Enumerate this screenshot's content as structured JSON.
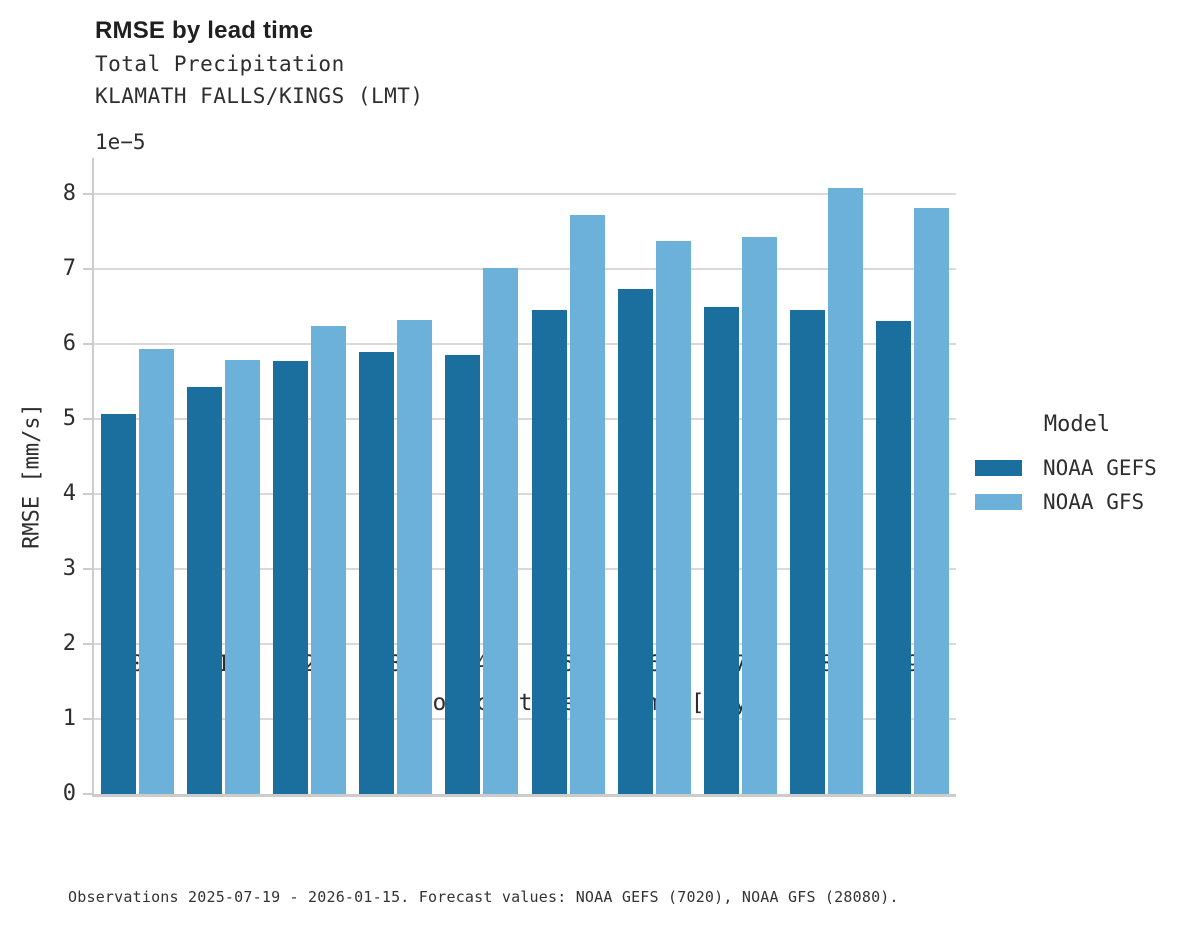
{
  "header": {
    "title": "RMSE by lead time",
    "subtitle_line1": "Total Precipitation",
    "subtitle_line2": "KLAMATH FALLS/KINGS (LMT)"
  },
  "axes": {
    "y_offset_label": "1e−5",
    "y_label": "RMSE [mm/s]",
    "x_label": "Forecast lead time [days]"
  },
  "legend": {
    "title": "Model",
    "entries": [
      {
        "label": "NOAA GEFS",
        "color": "#1b6f9f"
      },
      {
        "label": "NOAA GFS",
        "color": "#6cb1d9"
      }
    ]
  },
  "caption": "Observations 2025-07-19 - 2026-01-15. Forecast values: NOAA GEFS (7020), NOAA GFS (28080).",
  "colors": {
    "gefs_bar": "#1b6f9f",
    "gfs_bar": "#6cb1d9",
    "gridline": "#d9d9d9",
    "spine": "#cccccc",
    "text": "#2e2e2e"
  },
  "chart_data": {
    "type": "bar",
    "title": "RMSE by lead time",
    "subtitle": [
      "Total Precipitation",
      "KLAMATH FALLS/KINGS (LMT)"
    ],
    "xlabel": "Forecast lead time [days]",
    "ylabel": "RMSE [mm/s]",
    "value_scale": "1e-5",
    "categories": [
      0,
      1,
      2,
      3,
      4,
      5,
      6,
      7,
      8,
      9
    ],
    "series": [
      {
        "name": "NOAA GEFS",
        "color": "#1b6f9f",
        "values_x1e5": [
          5.07,
          5.43,
          5.77,
          5.89,
          5.86,
          6.46,
          6.73,
          6.5,
          6.46,
          6.31
        ]
      },
      {
        "name": "NOAA GFS",
        "color": "#6cb1d9",
        "values_x1e5": [
          5.94,
          5.79,
          6.24,
          6.32,
          7.02,
          7.72,
          7.38,
          7.43,
          8.08,
          7.81
        ]
      }
    ],
    "ylim_x1e5": [
      0,
      8.5
    ],
    "yticks_x1e5": [
      0,
      1,
      2,
      3,
      4,
      5,
      6,
      7,
      8
    ],
    "grid": "horizontal",
    "legend_position": "center-right"
  }
}
